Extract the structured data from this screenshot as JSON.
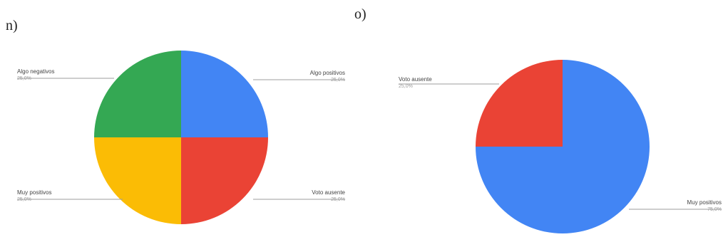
{
  "chart_data": [
    {
      "type": "pie",
      "panel_label": "n)",
      "slices": [
        {
          "label": "Algo positivos",
          "value": 25.0,
          "pct_text": "25,0%",
          "color": "#4285F4"
        },
        {
          "label": "Voto ausente",
          "value": 25.0,
          "pct_text": "25,0%",
          "color": "#EA4335"
        },
        {
          "label": "Muy positivos",
          "value": 25.0,
          "pct_text": "25,0%",
          "color": "#FBBC05"
        },
        {
          "label": "Algo negativos",
          "value": 25.0,
          "pct_text": "25,0%",
          "color": "#34A853"
        }
      ]
    },
    {
      "type": "pie",
      "panel_label": "o)",
      "slices": [
        {
          "label": "Muy positivos",
          "value": 75.0,
          "pct_text": "75,0%",
          "color": "#4285F4"
        },
        {
          "label": "Voto ausente",
          "value": 25.0,
          "pct_text": "25,0%",
          "color": "#EA4335"
        }
      ]
    }
  ]
}
